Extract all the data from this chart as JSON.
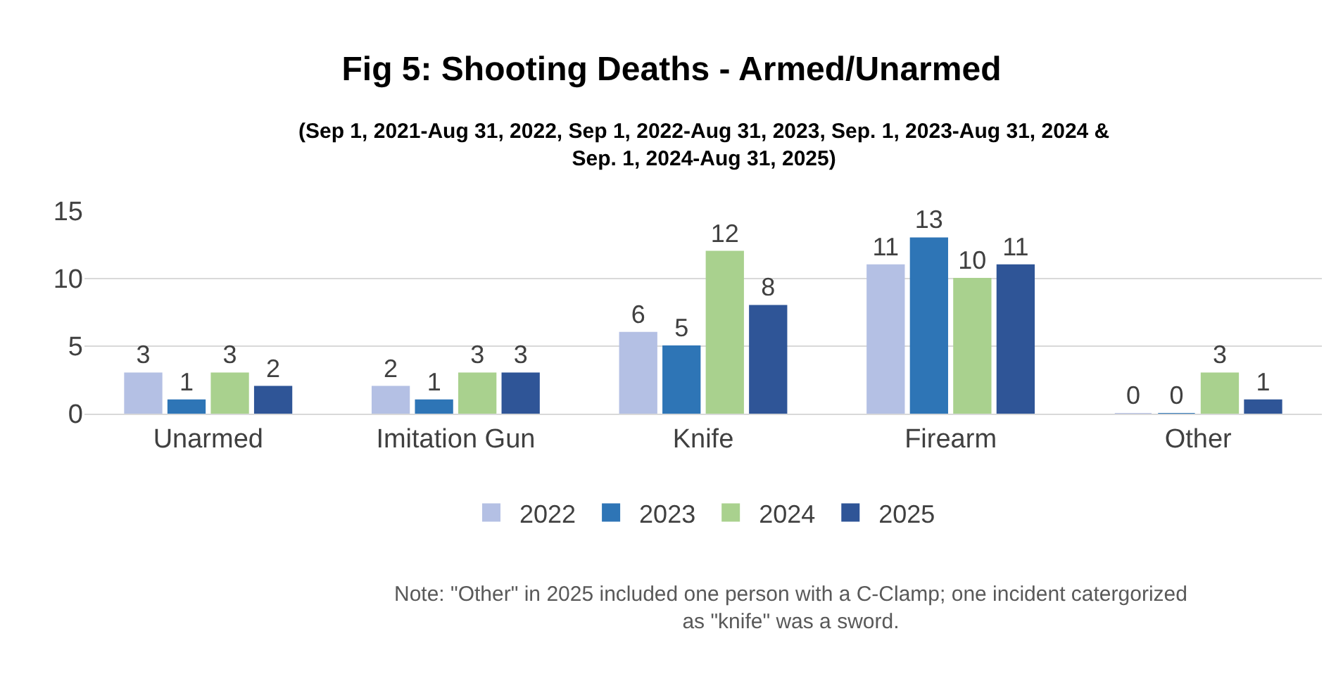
{
  "chart_data": {
    "type": "bar",
    "title": "Fig 5: Shooting Deaths - Armed/Unarmed",
    "subtitle": "(Sep 1, 2021-Aug 31, 2022, Sep 1, 2022-Aug 31, 2023, Sep. 1, 2023-Aug 31, 2024 & Sep. 1, 2024-Aug 31, 2025)",
    "categories": [
      "Unarmed",
      "Imitation Gun",
      "Knife",
      "Firearm",
      "Other"
    ],
    "series": [
      {
        "name": "2022",
        "color": "#b4c0e4",
        "values": [
          3,
          2,
          6,
          11,
          0
        ]
      },
      {
        "name": "2023",
        "color": "#2e75b6",
        "values": [
          1,
          1,
          5,
          13,
          0
        ]
      },
      {
        "name": "2024",
        "color": "#a9d18e",
        "values": [
          3,
          3,
          12,
          10,
          3
        ]
      },
      {
        "name": "2025",
        "color": "#2f5597",
        "values": [
          2,
          3,
          8,
          11,
          1
        ]
      }
    ],
    "ylim": [
      0,
      15
    ],
    "yticks": [
      0,
      5,
      10,
      15
    ],
    "grid": "y",
    "legend": "bottom",
    "data_labels": true,
    "annotations": [
      "Note: \"Other\" in 2025 included one person with a C-Clamp; one incident catergorized as \"knife\" was a sword."
    ]
  }
}
